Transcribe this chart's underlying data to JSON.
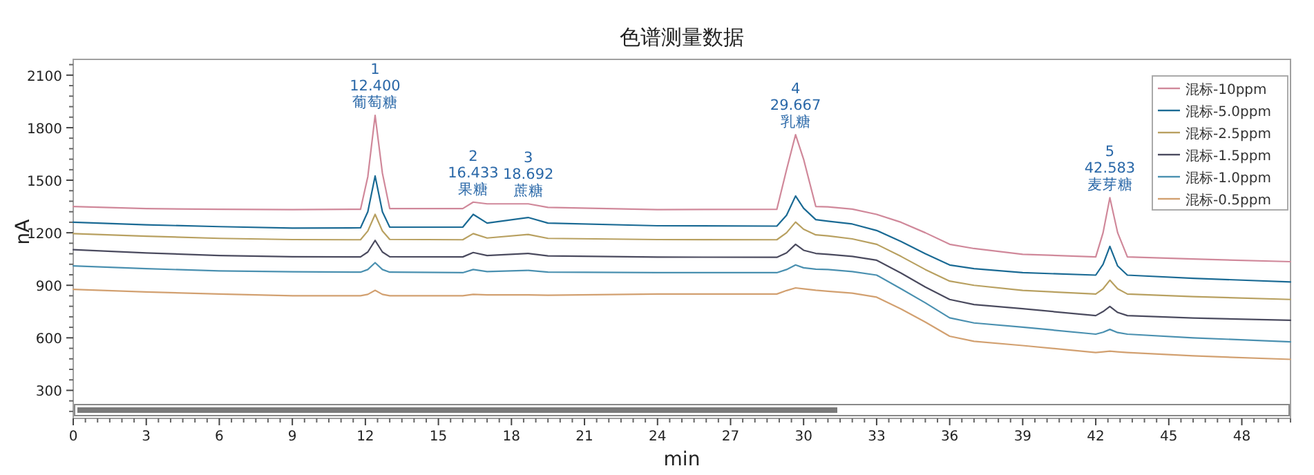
{
  "chart_data": {
    "type": "line",
    "title": "色谱测量数据",
    "xlabel": "min",
    "ylabel": "nA",
    "x": [
      0,
      3,
      6,
      9,
      11.8,
      12.1,
      12.4,
      12.7,
      13,
      16,
      16.43,
      17,
      18.69,
      19.5,
      24,
      28.9,
      29.3,
      29.67,
      30,
      30.5,
      31,
      32,
      33,
      34,
      35,
      36,
      37,
      39,
      42,
      42.3,
      42.58,
      42.9,
      43.3,
      46,
      50
    ],
    "series": [
      {
        "name": "混标-10ppm",
        "color": "#d0889a",
        "values": [
          1350,
          1338,
          1334,
          1332,
          1334,
          1520,
          1870,
          1540,
          1338,
          1338,
          1375,
          1365,
          1365,
          1345,
          1332,
          1334,
          1560,
          1760,
          1620,
          1350,
          1348,
          1335,
          1305,
          1260,
          1200,
          1134,
          1110,
          1077,
          1062,
          1200,
          1400,
          1200,
          1062,
          1050,
          1035
        ]
      },
      {
        "name": "混标-5.0ppm",
        "color": "#1a6a94",
        "values": [
          1260,
          1245,
          1235,
          1227,
          1228,
          1320,
          1524,
          1320,
          1232,
          1232,
          1305,
          1255,
          1287,
          1255,
          1240,
          1238,
          1300,
          1410,
          1340,
          1275,
          1266,
          1250,
          1213,
          1150,
          1080,
          1016,
          995,
          972,
          958,
          1020,
          1122,
          1010,
          958,
          940,
          919
        ]
      },
      {
        "name": "混标-2.5ppm",
        "color": "#b8a060",
        "values": [
          1195,
          1180,
          1168,
          1161,
          1160,
          1210,
          1305,
          1210,
          1162,
          1160,
          1195,
          1170,
          1190,
          1168,
          1161,
          1160,
          1200,
          1261,
          1220,
          1188,
          1182,
          1165,
          1134,
          1065,
          990,
          924,
          900,
          871,
          850,
          880,
          929,
          880,
          850,
          835,
          819
        ]
      },
      {
        "name": "混标-1.5ppm",
        "color": "#4a4a5e",
        "values": [
          1103,
          1085,
          1070,
          1063,
          1062,
          1090,
          1156,
          1090,
          1063,
          1062,
          1087,
          1070,
          1082,
          1068,
          1061,
          1060,
          1085,
          1134,
          1100,
          1082,
          1077,
          1065,
          1043,
          970,
          890,
          819,
          790,
          766,
          727,
          750,
          779,
          745,
          727,
          713,
          700
        ]
      },
      {
        "name": "混标-1.0ppm",
        "color": "#4a90b0",
        "values": [
          1011,
          995,
          982,
          977,
          975,
          990,
          1029,
          990,
          975,
          972,
          990,
          978,
          985,
          975,
          972,
          972,
          990,
          1016,
          1000,
          992,
          990,
          978,
          958,
          880,
          800,
          714,
          685,
          661,
          621,
          632,
          648,
          630,
          621,
          600,
          577
        ]
      },
      {
        "name": "混标-0.5ppm",
        "color": "#d2a070",
        "values": [
          877,
          862,
          850,
          840,
          840,
          848,
          871,
          848,
          840,
          840,
          848,
          845,
          845,
          843,
          850,
          850,
          870,
          885,
          880,
          872,
          866,
          855,
          832,
          765,
          690,
          609,
          580,
          556,
          516,
          520,
          524,
          520,
          516,
          497,
          477
        ]
      }
    ],
    "annotations": [
      {
        "text": "1\n12.400\n葡萄糖",
        "x": 12.4,
        "y": 1870
      },
      {
        "text": "2\n16.433\n果糖",
        "x": 16.43,
        "y": 1375
      },
      {
        "text": "3\n18.692\n蔗糖",
        "x": 18.69,
        "y": 1365
      },
      {
        "text": "4\n29.667\n乳糖",
        "x": 29.67,
        "y": 1760
      },
      {
        "text": "5\n42.583\n麦芽糖",
        "x": 42.58,
        "y": 1400
      }
    ],
    "xlim": [
      0,
      50
    ],
    "ylim": [
      140,
      2190
    ],
    "xticks": [
      0,
      3,
      6,
      9,
      12,
      15,
      18,
      21,
      24,
      27,
      30,
      33,
      36,
      39,
      42,
      45,
      48
    ],
    "yticks": [
      300,
      600,
      900,
      1200,
      1500,
      1800,
      2100
    ],
    "grid": false,
    "legend": "top right",
    "marker": "none",
    "line_style": "solid"
  }
}
